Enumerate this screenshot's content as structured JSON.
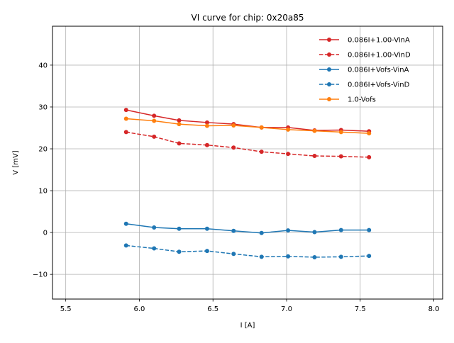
{
  "chart_data": {
    "type": "line",
    "title": "VI curve for chip: 0x20a85",
    "xlabel": "I [A]",
    "ylabel": "V [mV]",
    "xlim": [
      5.41,
      8.06
    ],
    "ylim": [
      -15.9,
      49.3
    ],
    "grid": true,
    "legend_position": "top-right",
    "xticks": [
      5.5,
      6.0,
      6.5,
      7.0,
      7.5,
      8.0
    ],
    "xtick_labels": [
      "5.5",
      "6.0",
      "6.5",
      "7.0",
      "7.5",
      "8.0"
    ],
    "yticks": [
      -10,
      0,
      10,
      20,
      30,
      40
    ],
    "ytick_labels": [
      "−10",
      "0",
      "10",
      "20",
      "30",
      "40"
    ],
    "x": [
      5.91,
      6.1,
      6.27,
      6.46,
      6.64,
      6.83,
      7.01,
      7.19,
      7.37,
      7.56
    ],
    "series": [
      {
        "name": "0.086I+1.00-VinA",
        "color": "#d62728",
        "dashed": false,
        "values": [
          29.3,
          27.9,
          26.8,
          26.3,
          25.9,
          25.1,
          25.1,
          24.4,
          24.5,
          24.2
        ]
      },
      {
        "name": "0.086I+1.00-VinD",
        "color": "#d62728",
        "dashed": true,
        "values": [
          24.0,
          22.9,
          21.3,
          20.9,
          20.3,
          19.3,
          18.8,
          18.3,
          18.2,
          18.0
        ]
      },
      {
        "name": "0.086I+Vofs-VinA",
        "color": "#1f77b4",
        "dashed": false,
        "values": [
          2.1,
          1.2,
          0.9,
          0.9,
          0.4,
          -0.1,
          0.5,
          0.1,
          0.6,
          0.6
        ]
      },
      {
        "name": "0.086I+Vofs-VinD",
        "color": "#1f77b4",
        "dashed": true,
        "values": [
          -3.1,
          -3.8,
          -4.6,
          -4.4,
          -5.1,
          -5.8,
          -5.7,
          -5.9,
          -5.8,
          -5.6
        ]
      },
      {
        "name": "1.0-Vofs",
        "color": "#ff7f0e",
        "dashed": false,
        "values": [
          27.2,
          26.7,
          25.9,
          25.5,
          25.6,
          25.1,
          24.6,
          24.3,
          24.0,
          23.7
        ]
      }
    ]
  }
}
